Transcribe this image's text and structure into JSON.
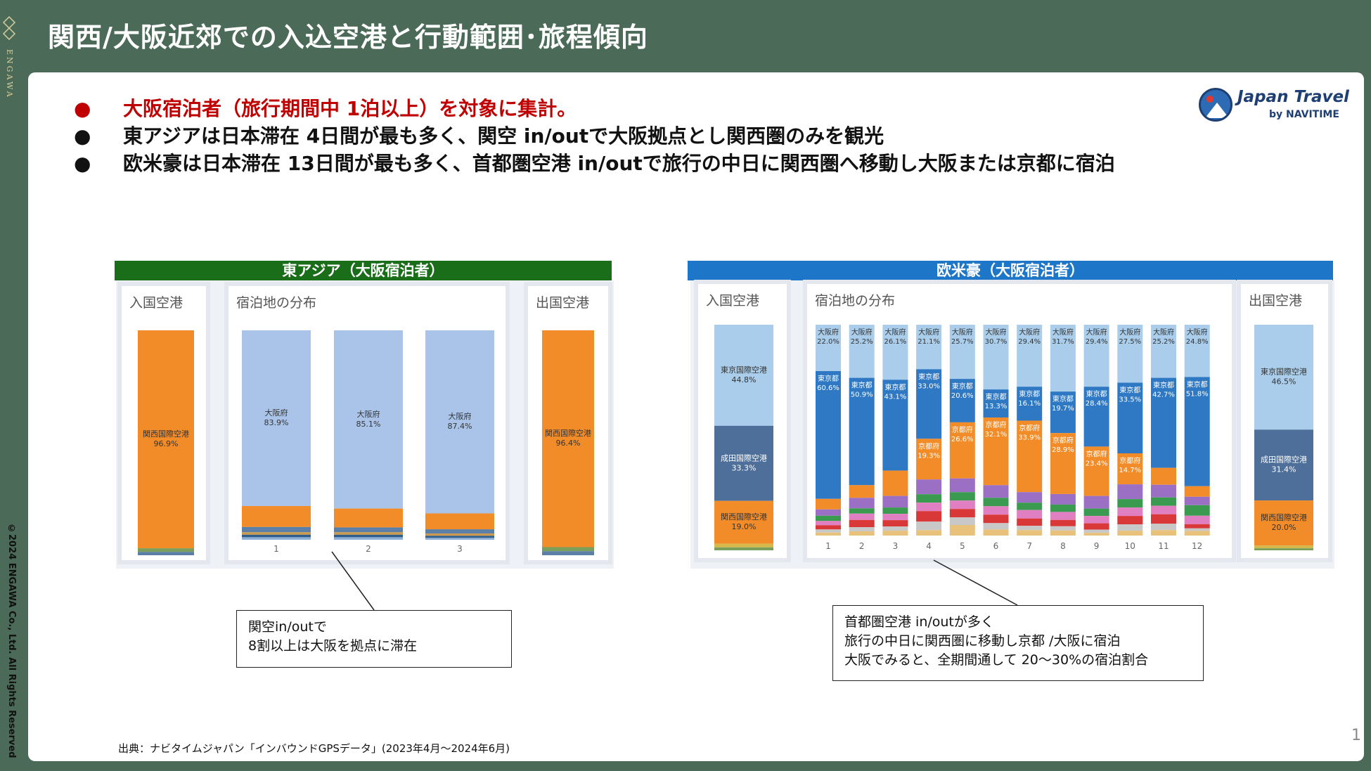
{
  "brand": {
    "name": "ENGAWA",
    "copyright": "©2024 ENGAWA Co., Ltd. All Rights Reserved"
  },
  "page": {
    "title": "関西/大阪近郊での入込空港と行動範囲･旅程傾向",
    "page_number": "1"
  },
  "bullets": [
    {
      "text": "大阪宿泊者（旅行期間中 1泊以上）を対象に集計。",
      "highlight": true
    },
    {
      "text": "東アジアは日本滞在 4日間が最も多く、関空 in/outで大阪拠点とし関西圏のみを観光",
      "highlight": false
    },
    {
      "text": "欧米豪は日本滞在 13日間が最も多く、首都圏空港 in/outで旅行の中日に関西圏へ移動し大阪または京都に宿泊",
      "highlight": false
    }
  ],
  "bullet_glyph": "●",
  "logo": {
    "name": "Japan Travel",
    "by": "by NAVITIME"
  },
  "colors": {
    "east_asia_header": "#1a6e1a",
    "western_header": "#1e76c9",
    "background": "#4b6b58",
    "highlight_text": "#c00000"
  },
  "chart_data": [
    {
      "type": "bar",
      "stacked": true,
      "title": "東アジア（大阪宿泊者）",
      "panels": {
        "entry": "入国空港",
        "lodging": "宿泊地の分布",
        "exit": "出国空港"
      },
      "entry_airport": [
        {
          "label": "関西国際空港",
          "value": 96.9,
          "color": "#f28c28"
        },
        {
          "label": "",
          "value": 1.6,
          "color": "#7b9e5a"
        },
        {
          "label": "",
          "value": 1.5,
          "color": "#5b7fa6"
        }
      ],
      "exit_airport": [
        {
          "label": "関西国際空港",
          "value": 96.4,
          "color": "#f28c28"
        },
        {
          "label": "",
          "value": 1.8,
          "color": "#7b9e5a"
        },
        {
          "label": "",
          "value": 1.8,
          "color": "#5b7fa6"
        }
      ],
      "categories": [
        "1",
        "2",
        "3"
      ],
      "lodging_series": [
        {
          "name": "大阪府",
          "values": [
            83.9,
            85.1,
            87.4
          ],
          "color": "#a9c4e8"
        },
        {
          "name": "",
          "values": [
            10.0,
            9.0,
            7.6
          ],
          "color": "#f28c28"
        },
        {
          "name": "",
          "values": [
            2.5,
            2.3,
            2.0
          ],
          "color": "#5b7fa6"
        },
        {
          "name": "",
          "values": [
            1.2,
            1.2,
            1.1
          ],
          "color": "#c99a4d"
        },
        {
          "name": "",
          "values": [
            1.2,
            1.2,
            1.0
          ],
          "color": "#2f5e8c"
        },
        {
          "name": "",
          "values": [
            1.2,
            1.2,
            0.9
          ],
          "color": "#8fb0d6"
        }
      ]
    },
    {
      "type": "bar",
      "stacked": true,
      "title": "欧米豪（大阪宿泊者）",
      "panels": {
        "entry": "入国空港",
        "lodging": "宿泊地の分布",
        "exit": "出国空港"
      },
      "entry_airport": [
        {
          "label": "東京国際空港",
          "value": 44.8,
          "color": "#a9cdea"
        },
        {
          "label": "成田国際空港",
          "value": 33.3,
          "color": "#4e6f99"
        },
        {
          "label": "関西国際空港",
          "value": 19.0,
          "color": "#f28c28"
        },
        {
          "label": "",
          "value": 1.6,
          "color": "#d4b94a"
        },
        {
          "label": "",
          "value": 1.3,
          "color": "#7b9e5a"
        }
      ],
      "exit_airport": [
        {
          "label": "東京国際空港",
          "value": 46.5,
          "color": "#a9cdea"
        },
        {
          "label": "成田国際空港",
          "value": 31.4,
          "color": "#4e6f99"
        },
        {
          "label": "関西国際空港",
          "value": 20.0,
          "color": "#f28c28"
        },
        {
          "label": "",
          "value": 1.2,
          "color": "#d4b94a"
        },
        {
          "label": "",
          "value": 0.9,
          "color": "#7b9e5a"
        }
      ],
      "categories": [
        "1",
        "2",
        "3",
        "4",
        "5",
        "6",
        "7",
        "8",
        "9",
        "10",
        "11",
        "12"
      ],
      "lodging_series": [
        {
          "name": "大阪府",
          "values": [
            22.0,
            25.2,
            26.1,
            21.1,
            25.7,
            30.7,
            29.4,
            31.7,
            29.4,
            27.5,
            25.2,
            24.8
          ],
          "color": "#a9cdea"
        },
        {
          "name": "東京都",
          "values": [
            60.6,
            50.9,
            43.1,
            33.0,
            20.6,
            13.3,
            16.1,
            19.7,
            28.4,
            33.5,
            42.7,
            51.8
          ],
          "color": "#2f78c4"
        },
        {
          "name": "京都府",
          "values": [
            5.0,
            6.0,
            12.0,
            19.3,
            26.6,
            32.1,
            33.9,
            28.9,
            23.4,
            14.7,
            8.0,
            5.0
          ],
          "color": "#f28c28"
        },
        {
          "name": "",
          "values": [
            3.0,
            5.0,
            5.5,
            7.0,
            6.5,
            6.0,
            5.0,
            5.0,
            6.0,
            7.0,
            6.0,
            4.0
          ],
          "color": "#9b6fc3"
        },
        {
          "name": "",
          "values": [
            2.5,
            2.5,
            3.0,
            4.0,
            4.0,
            4.0,
            3.5,
            3.5,
            3.5,
            4.0,
            4.0,
            5.0
          ],
          "color": "#3a9b50"
        },
        {
          "name": "",
          "values": [
            2.0,
            3.0,
            3.0,
            4.0,
            4.0,
            4.0,
            4.0,
            3.8,
            3.5,
            4.0,
            4.0,
            4.0
          ],
          "color": "#e07fc1"
        },
        {
          "name": "",
          "values": [
            2.0,
            3.4,
            3.0,
            5.0,
            4.0,
            4.0,
            3.5,
            3.0,
            3.0,
            4.0,
            4.5,
            2.0
          ],
          "color": "#d93838"
        },
        {
          "name": "",
          "values": [
            1.5,
            2.0,
            2.0,
            4.0,
            3.6,
            3.0,
            2.0,
            2.0,
            1.5,
            3.0,
            3.0,
            1.2
          ],
          "color": "#c8c8c8"
        },
        {
          "name": "",
          "values": [
            1.4,
            2.0,
            2.3,
            2.6,
            5.0,
            2.9,
            2.6,
            2.4,
            1.3,
            2.3,
            2.6,
            2.2
          ],
          "color": "#e8c27a"
        }
      ]
    }
  ],
  "callouts": [
    {
      "lines": [
        "関空in/outで",
        "8割以上は大阪を拠点に滞在"
      ]
    },
    {
      "lines": [
        "首都圏空港 in/outが多く",
        "旅行の中日に関西圏に移動し京都 /大阪に宿泊",
        "大阪でみると、全期間通して 20〜30%の宿泊割合"
      ]
    }
  ],
  "source": "出典：ナビタイムジャパン「インバウンドGPSデータ」(2023年4月〜2024年6月)"
}
